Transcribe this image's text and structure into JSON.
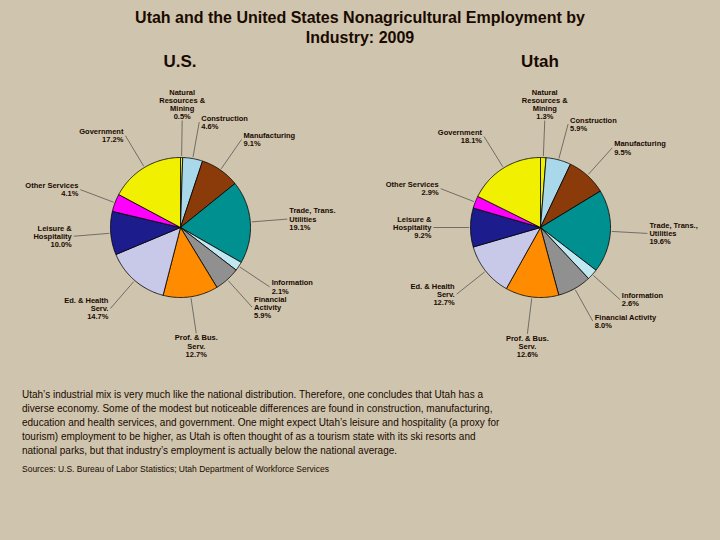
{
  "title": "Utah and the United States Nonagricultural Employment by\nIndustry: 2009",
  "annotations": [
    "Utah’s industrial mix is very much like the national distribution. Therefore, one concludes that Utah has a\ndiverse economy. Some of the modest but noticeable differences are found in construction, manufacturing,\neducation and health services, and government. One might expect Utah’s leisure and hospitality (a proxy for\ntourism) employment to be higher, as Utah is often thought of as a tourism state with its ski resorts and\nnational parks, but that industry’s employment is actually below the national average.",
    "Sources: U.S. Bureau of Labor Statistics; Utah Department of Workforce Services"
  ],
  "chart_data": [
    {
      "type": "pie",
      "title": "U.S.",
      "categories": [
        "Natural\nResources &\nMining\n0.5%",
        "Construction\n4.6%",
        "Manufacturing\n9.1%",
        "Trade, Trans.\nUtilities\n19.1%",
        "Information\n2.1%",
        "Financial\nActivity\n5.9%",
        "Prof. & Bus.\nServ.\n12.7%",
        "Ed. & Health\nServ.\n14.7%",
        "Leisure &\nHospitality\n10.0%",
        "Other Services\n4.1%",
        "Government\n17.2%"
      ],
      "values": [
        0.5,
        4.6,
        9.1,
        19.1,
        2.1,
        5.9,
        12.7,
        14.7,
        10.0,
        4.1,
        17.2
      ],
      "colors": [
        "#f0f000",
        "#a8d8ea",
        "#8b3a0a",
        "#009090",
        "#c0e8f0",
        "#909090",
        "#ff8c00",
        "#c8c8e8",
        "#1c1c8c",
        "#ff00ff",
        "#f0f000"
      ]
    },
    {
      "type": "pie",
      "title": "Utah",
      "categories": [
        "Natural\nResources &\nMining\n1.3%",
        "Construction\n5.9%",
        "Manufacturing\n9.5%",
        "Trade, Trans.,\nUtilities\n19.6%",
        "Information\n2.6%",
        "Financial Activity\n8.0%",
        "Prof. & Bus.\nServ.\n12.6%",
        "Ed. & Health\nServ.\n12.7%",
        "Leisure &\nHospitality\n9.2%",
        "Other Services\n2.9%",
        "Government\n18.1%"
      ],
      "values": [
        1.3,
        5.9,
        9.5,
        19.6,
        2.6,
        8.0,
        12.6,
        12.7,
        9.2,
        2.9,
        18.1
      ],
      "colors": [
        "#f0f000",
        "#a8d8ea",
        "#8b3a0a",
        "#009090",
        "#c0e8f0",
        "#909090",
        "#ff8c00",
        "#c8c8e8",
        "#1c1c8c",
        "#ff00ff",
        "#f0f000"
      ]
    }
  ]
}
